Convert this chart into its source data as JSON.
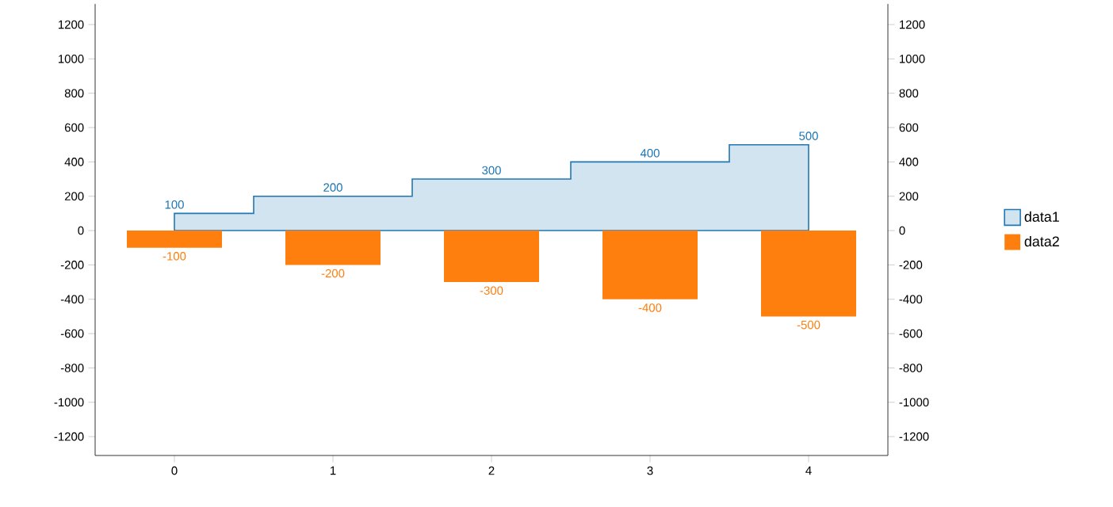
{
  "chart_data": {
    "type": "bar",
    "categories": [
      "0",
      "1",
      "2",
      "3",
      "4"
    ],
    "series": [
      {
        "name": "data1",
        "type": "area",
        "color": "#1f77b4",
        "values": [
          100,
          200,
          300,
          400,
          500
        ]
      },
      {
        "name": "data2",
        "color": "#ff7f0e",
        "values": [
          -100,
          -200,
          -300,
          -400,
          -500
        ]
      }
    ],
    "ylim": [
      -1310,
      1320
    ],
    "yticks": [
      -1200,
      -1000,
      -800,
      -600,
      -400,
      -200,
      0,
      200,
      400,
      600,
      800,
      1000,
      1200
    ],
    "y2lim": [
      -1310,
      1320
    ],
    "y2ticks": [
      -1200,
      -1000,
      -800,
      -600,
      -400,
      -200,
      0,
      200,
      400,
      600,
      800,
      1000,
      1200
    ],
    "data_labels": true,
    "legend": "right",
    "grid": false
  }
}
